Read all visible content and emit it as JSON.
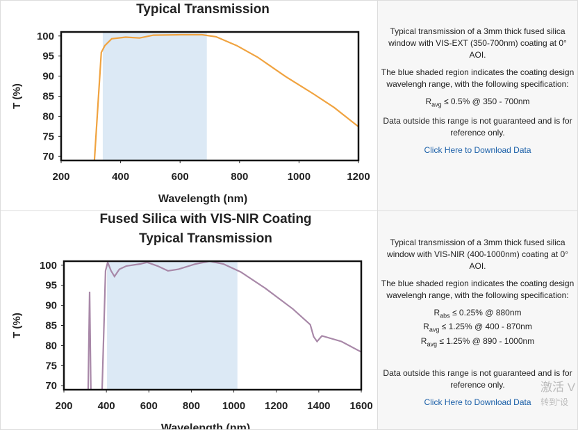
{
  "chart_data": [
    {
      "type": "line",
      "subtitle": "Typical Transmission",
      "xlabel": "Wavelength (nm)",
      "ylabel": "T (%)",
      "xlim": [
        200,
        1200
      ],
      "ylim": [
        69,
        101
      ],
      "xticks": [
        200,
        400,
        600,
        800,
        1000,
        1200
      ],
      "yticks": [
        70,
        75,
        80,
        85,
        90,
        95,
        100
      ],
      "shaded_region": [
        340,
        690
      ],
      "shade_color": "#dce9f5",
      "color": "#f0a340",
      "x": [
        312,
        335,
        347,
        370,
        417,
        464,
        510,
        604,
        674,
        721,
        791,
        861,
        955,
        1048,
        1118,
        1200
      ],
      "values": [
        69,
        95.9,
        97.6,
        99.3,
        99.7,
        99.5,
        100.2,
        100.3,
        100.3,
        99.8,
        97.6,
        94.7,
        89.9,
        85.6,
        82.2,
        77.4
      ]
    },
    {
      "type": "line",
      "title": "Fused Silica with VIS-NIR Coating",
      "subtitle": "Typical Transmission",
      "xlabel": "Wavelength (nm)",
      "ylabel": "T (%)",
      "xlim": [
        200,
        1600
      ],
      "ylim": [
        69,
        101
      ],
      "xticks": [
        200,
        400,
        600,
        800,
        1000,
        1200,
        1400,
        1600
      ],
      "yticks": [
        70,
        75,
        80,
        85,
        90,
        95,
        100
      ],
      "shaded_region": [
        403,
        1017
      ],
      "shade_color": "#dce9f5",
      "color": "#a888a8",
      "x": [
        314,
        321,
        327,
        350,
        380,
        396,
        406,
        422,
        438,
        461,
        494,
        559,
        592,
        641,
        690,
        739,
        820,
        886,
        951,
        1033,
        1147,
        1278,
        1360,
        1376,
        1392,
        1415,
        1507,
        1600
      ],
      "values": [
        69.1,
        93.4,
        69.1,
        null,
        69.1,
        98.6,
        100.7,
        98.6,
        97.2,
        99,
        99.8,
        100.3,
        100.7,
        99.8,
        98.6,
        99,
        100.3,
        101,
        100.3,
        98.3,
        94.3,
        89.1,
        85.2,
        82.2,
        81,
        82.4,
        81,
        78.4
      ]
    }
  ],
  "panels": [
    {
      "description": "Typical transmission of a 3mm thick fused silica window with VIS-EXT (350-700nm) coating at 0° AOI.",
      "shading_note": "The blue shaded region indicates the coating design wavelengh range, with the following specification:",
      "specs": [
        {
          "symbol": "R",
          "sub": "avg",
          "text": "≤ 0.5% @ 350 - 700nm"
        }
      ],
      "disclaimer": "Data outside this range is not guaranteed and is for reference only.",
      "link": "Click Here to Download Data"
    },
    {
      "description": "Typical transmission of a 3mm thick fused silica window with VIS-NIR (400-1000nm) coating at 0° AOI.",
      "shading_note": "The blue shaded region indicates the coating design wavelengh range, with the following specification:",
      "specs": [
        {
          "symbol": "R",
          "sub": "abs",
          "text": "≤ 0.25% @ 880nm"
        },
        {
          "symbol": "R",
          "sub": "avg",
          "text": "≤ 1.25% @ 400 - 870nm"
        },
        {
          "symbol": "R",
          "sub": "avg",
          "text": "≤ 1.25% @ 890 - 1000nm"
        }
      ],
      "disclaimer": "Data outside this range is not guaranteed and is for reference only.",
      "link": "Click Here to Download Data"
    }
  ],
  "watermark": [
    "激活 V",
    "转到“设"
  ]
}
